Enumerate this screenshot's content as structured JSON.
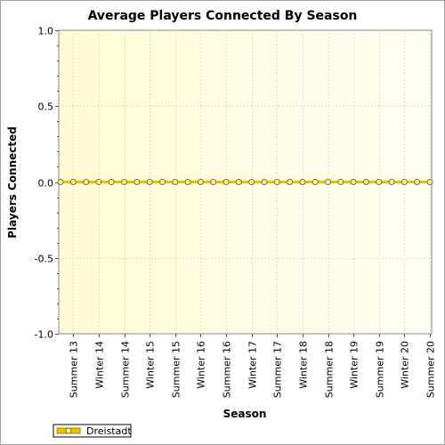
{
  "chart_data": {
    "type": "line",
    "title": "Average Players Connected By Season",
    "xlabel": "Season",
    "ylabel": "Players Connected",
    "categories": [
      "Summer 13",
      "Winter 14",
      "Summer 14",
      "Winter 15",
      "Summer 15",
      "Winter 16",
      "Summer 16",
      "Winter 17",
      "Summer 17",
      "Winter 18",
      "Summer 18",
      "Winter 19",
      "Summer 19",
      "Winter 20",
      "Summer 20"
    ],
    "point_count": 30,
    "series": [
      {
        "name": "Dreistadt",
        "color": "#e8c400",
        "marker": "circle",
        "value": 0.0
      }
    ],
    "ylim": [
      -1.0,
      1.0
    ],
    "yticks": [
      "1.0",
      "0.5",
      "0.0",
      "-0.5",
      "-1.0"
    ],
    "grid": true,
    "legend_placement": "bottom-left",
    "colors": {
      "plot_bg_left": "#fffbd6",
      "plot_bg_right": "#fffef3",
      "zero_line": "#5a5300"
    }
  }
}
